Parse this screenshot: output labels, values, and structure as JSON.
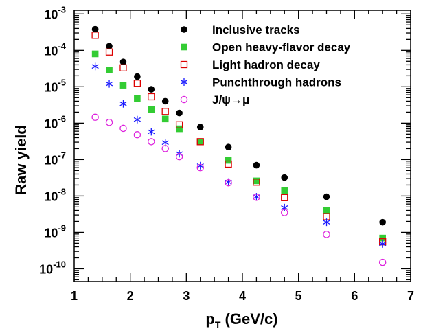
{
  "chart_data": {
    "type": "scatter",
    "title": "",
    "xlabel": "p_T (GeV/c)",
    "xlabel_main": "p",
    "xlabel_sub": "T",
    "xlabel_rest": " (GeV/c)",
    "ylabel": "Raw yield",
    "xlim": [
      1,
      7
    ],
    "ylim": [
      5e-11,
      0.001
    ],
    "yscale": "log",
    "grid": false,
    "legend_position": "top-right",
    "x_ticks": [
      "1",
      "2",
      "3",
      "4",
      "5",
      "6",
      "7"
    ],
    "y_ticks": [
      {
        "base": "10",
        "exp": "-3"
      },
      {
        "base": "10",
        "exp": "-4"
      },
      {
        "base": "10",
        "exp": "-5"
      },
      {
        "base": "10",
        "exp": "-6"
      },
      {
        "base": "10",
        "exp": "-7"
      },
      {
        "base": "10",
        "exp": "-8"
      },
      {
        "base": "10",
        "exp": "-9"
      },
      {
        "base": "10",
        "exp": "-10"
      }
    ],
    "series": [
      {
        "name": "Inclusive tracks",
        "marker": "filled-circle",
        "color": "#000000",
        "x": [
          1.375,
          1.625,
          1.875,
          2.125,
          2.375,
          2.625,
          2.875,
          3.25,
          3.75,
          4.25,
          4.75,
          5.5,
          6.5
        ],
        "y": [
          0.00038,
          0.00013,
          4.8e-05,
          1.9e-05,
          8.5e-06,
          4e-06,
          1.9e-06,
          7.8e-07,
          2.2e-07,
          7e-08,
          3.2e-08,
          9.5e-09,
          1.9e-09
        ]
      },
      {
        "name": "Open heavy-flavor decay",
        "marker": "filled-square",
        "color": "#33cc33",
        "x": [
          1.375,
          1.625,
          1.875,
          2.125,
          2.375,
          2.625,
          2.875,
          3.25,
          3.75,
          4.25,
          4.75,
          5.5,
          6.5
        ],
        "y": [
          8e-05,
          2.9e-05,
          1.1e-05,
          4.8e-06,
          2.4e-06,
          1.3e-06,
          7e-07,
          3.1e-07,
          9.5e-08,
          2.6e-08,
          1.4e-08,
          4e-09,
          7e-10
        ]
      },
      {
        "name": "Light hadron decay",
        "marker": "open-square",
        "color": "#dd0000",
        "x": [
          1.375,
          1.625,
          1.875,
          2.125,
          2.375,
          2.625,
          2.875,
          3.25,
          3.75,
          4.25,
          4.75,
          5.5,
          6.5
        ],
        "y": [
          0.00026,
          9e-05,
          3.3e-05,
          1.25e-05,
          5.3e-06,
          2.1e-06,
          9e-07,
          3.1e-07,
          7.5e-08,
          2.4e-08,
          9e-09,
          2.7e-09,
          5.5e-10
        ]
      },
      {
        "name": "Punchthrough hadrons",
        "marker": "asterisk",
        "color": "#1a1aff",
        "x": [
          1.375,
          1.625,
          1.875,
          2.125,
          2.375,
          2.625,
          2.875,
          3.25,
          3.75,
          4.25,
          4.75,
          5.5,
          6.5
        ],
        "y": [
          3.6e-05,
          1.2e-05,
          3.4e-06,
          1.25e-06,
          5.8e-07,
          2.9e-07,
          1.45e-07,
          6.8e-08,
          2.4e-08,
          9.5e-09,
          4.8e-09,
          1.9e-09,
          4.8e-10
        ]
      },
      {
        "name": "J/ψ→μ",
        "marker": "open-circle",
        "color": "#dd22dd",
        "x": [
          1.375,
          1.625,
          1.875,
          2.125,
          2.375,
          2.625,
          2.875,
          3.25,
          3.75,
          4.25,
          4.75,
          5.5,
          6.5
        ],
        "y": [
          1.45e-06,
          1.05e-06,
          7.2e-07,
          4.8e-07,
          3.1e-07,
          2e-07,
          1.2e-07,
          6e-08,
          2.3e-08,
          9.2e-09,
          3.5e-09,
          8.8e-10,
          1.5e-10
        ]
      }
    ]
  }
}
